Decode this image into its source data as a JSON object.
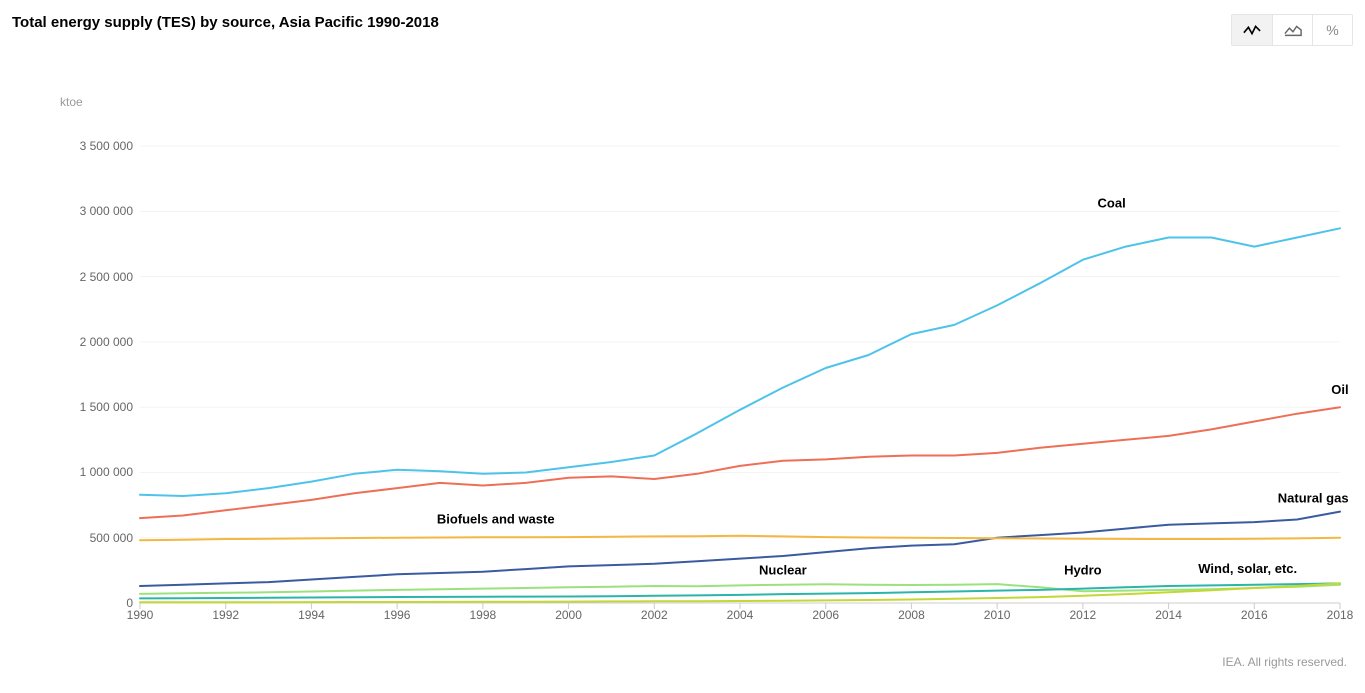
{
  "title": "Total energy supply (TES) by source, Asia Pacific 1990-2018",
  "toolbar": {
    "line_mode": "Line chart",
    "area_mode": "Stacked area chart",
    "percent_mode": "Percentage"
  },
  "attribution": "IEA. All rights reserved.",
  "chart": {
    "type": "line",
    "y_unit_label": "ktoe",
    "background_color": "#ffffff",
    "grid_color": "#f3f3f3",
    "axis_color": "#cccccc",
    "text_color": "#666666",
    "title_fontsize": 15,
    "label_fontsize": 12,
    "series_label_fontsize": 13,
    "line_width": 2,
    "xlim": [
      1990,
      2018
    ],
    "ylim": [
      0,
      3700000
    ],
    "xticks": [
      1990,
      1992,
      1994,
      1996,
      1998,
      2000,
      2002,
      2004,
      2006,
      2008,
      2010,
      2012,
      2014,
      2016,
      2018
    ],
    "yticks": [
      0,
      500000,
      1000000,
      1500000,
      2000000,
      2500000,
      3000000,
      3500000
    ],
    "ytick_labels": [
      "0",
      "500 000",
      "1 000 000",
      "1 500 000",
      "2 000 000",
      "2 500 000",
      "3 000 000",
      "3 500 000"
    ],
    "years": [
      1990,
      1991,
      1992,
      1993,
      1994,
      1995,
      1996,
      1997,
      1998,
      1999,
      2000,
      2001,
      2002,
      2003,
      2004,
      2005,
      2006,
      2007,
      2008,
      2009,
      2010,
      2011,
      2012,
      2013,
      2014,
      2015,
      2016,
      2017,
      2018
    ],
    "series": [
      {
        "name": "Coal",
        "color": "#4ec3ea",
        "label_pos": "end-above",
        "label_x": 2013,
        "label_y": 3030000,
        "values": [
          830000,
          820000,
          840000,
          880000,
          930000,
          990000,
          1020000,
          1010000,
          990000,
          1000000,
          1040000,
          1080000,
          1130000,
          1300000,
          1480000,
          1650000,
          1800000,
          1900000,
          2060000,
          2130000,
          2280000,
          2450000,
          2630000,
          2730000,
          2800000,
          2800000,
          2730000,
          2800000,
          2870000
        ]
      },
      {
        "name": "Oil",
        "color": "#ee6f57",
        "label_pos": "end-above",
        "label_x": 2018.2,
        "label_y": 1600000,
        "values": [
          650000,
          670000,
          710000,
          750000,
          790000,
          840000,
          880000,
          920000,
          900000,
          920000,
          960000,
          970000,
          950000,
          990000,
          1050000,
          1090000,
          1100000,
          1120000,
          1130000,
          1130000,
          1150000,
          1190000,
          1220000,
          1250000,
          1280000,
          1330000,
          1390000,
          1450000,
          1500000
        ]
      },
      {
        "name": "Natural gas",
        "color": "#3a5ba0",
        "label_pos": "end-above",
        "label_x": 2018.2,
        "label_y": 770000,
        "values": [
          130000,
          140000,
          150000,
          160000,
          180000,
          200000,
          220000,
          230000,
          240000,
          260000,
          280000,
          290000,
          300000,
          320000,
          340000,
          360000,
          390000,
          420000,
          440000,
          450000,
          500000,
          520000,
          540000,
          570000,
          600000,
          610000,
          620000,
          640000,
          700000
        ]
      },
      {
        "name": "Biofuels and waste",
        "color": "#f4b740",
        "label_pos": "mid",
        "label_x": 1998.3,
        "label_y": 610000,
        "values": [
          480000,
          485000,
          490000,
          492000,
          495000,
          498000,
          500000,
          502000,
          503000,
          504000,
          505000,
          508000,
          510000,
          512000,
          515000,
          510000,
          505000,
          502000,
          500000,
          498000,
          496000,
          494000,
          492000,
          491000,
          490000,
          490000,
          492000,
          495000,
          500000
        ]
      },
      {
        "name": "Nuclear",
        "color": "#9be27f",
        "label_pos": "mid",
        "label_x": 2005,
        "label_y": 220000,
        "values": [
          70000,
          75000,
          78000,
          82000,
          88000,
          95000,
          100000,
          105000,
          110000,
          115000,
          120000,
          125000,
          130000,
          128000,
          135000,
          140000,
          143000,
          140000,
          138000,
          140000,
          145000,
          120000,
          90000,
          95000,
          100000,
          105000,
          115000,
          125000,
          140000
        ]
      },
      {
        "name": "Hydro",
        "color": "#2bb5a9",
        "label_pos": "mid",
        "label_x": 2012,
        "label_y": 220000,
        "values": [
          35000,
          37000,
          38000,
          40000,
          42000,
          44000,
          46000,
          47000,
          48000,
          49000,
          50000,
          52000,
          55000,
          58000,
          62000,
          68000,
          72000,
          76000,
          82000,
          88000,
          95000,
          100000,
          110000,
          120000,
          130000,
          135000,
          140000,
          145000,
          150000
        ]
      },
      {
        "name": "Wind, solar, etc.",
        "color": "#c4d733",
        "label_pos": "end-above",
        "label_x": 2017,
        "label_y": 230000,
        "values": [
          5000,
          5500,
          6000,
          6500,
          7000,
          7500,
          8000,
          8500,
          9000,
          10000,
          11000,
          12000,
          13000,
          14000,
          15000,
          17000,
          20000,
          23000,
          27000,
          32000,
          38000,
          45000,
          55000,
          68000,
          82000,
          98000,
          115000,
          130000,
          150000
        ]
      }
    ]
  }
}
